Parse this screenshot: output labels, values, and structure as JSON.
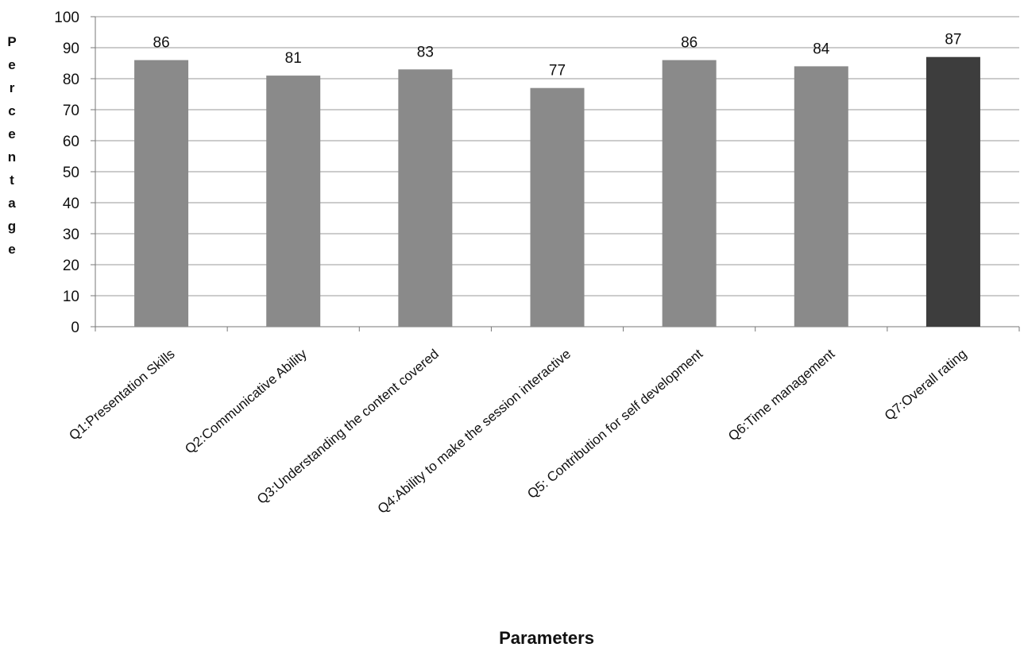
{
  "chart_data": {
    "type": "bar",
    "categories": [
      "Q1:Presentation Skills",
      "Q2:Communicative Ability",
      "Q3:Understanding the content covered",
      "Q4:Ability to make the session interactive",
      "Q5: Contribution for self development",
      "Q6:Time management",
      "Q7:Overall rating"
    ],
    "series": [
      {
        "values": [
          86,
          81,
          83,
          77,
          86,
          84,
          87
        ]
      }
    ],
    "data_labels": [
      "86",
      "81",
      "83",
      "77",
      "86",
      "84",
      "87"
    ],
    "title": "",
    "xlabel": "Parameters",
    "ylabel": "Percentage",
    "ylim": [
      0,
      100
    ],
    "yticks": [
      0,
      10,
      20,
      30,
      40,
      50,
      60,
      70,
      80,
      90,
      100
    ],
    "grid": true,
    "legend": "none",
    "colors": {
      "bar": "#8a8a8a",
      "highlight_bar": "#3d3d3d",
      "grid": "#9a9a9a",
      "axis": "#777777"
    }
  }
}
